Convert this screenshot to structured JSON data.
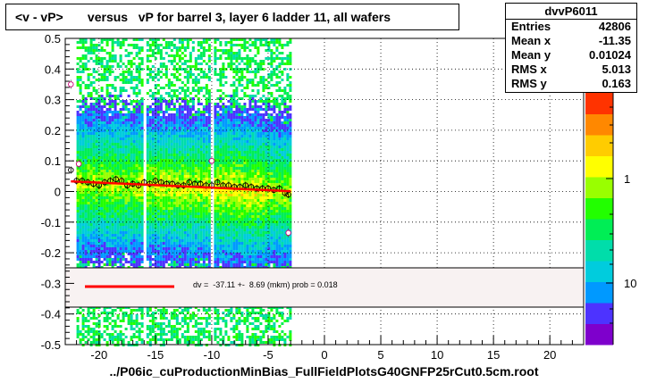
{
  "title": "<v - vP>       versus   vP for barrel 3, layer 6 ladder 11, all wafers",
  "footer": "../P06ic_cuProductionMinBias_FullFieldPlotsG40GNFP25rCut0.5cm.root",
  "stats": {
    "name": "dvvP6011",
    "rows": [
      {
        "label": "Entries",
        "value": "42806"
      },
      {
        "label": "Mean x",
        "value": "-11.35"
      },
      {
        "label": "Mean y",
        "value": "0.01024"
      },
      {
        "label": "RMS x",
        "value": "5.013"
      },
      {
        "label": "RMS y",
        "value": "0.163"
      }
    ]
  },
  "fit_legend": {
    "text": "dv =  -37.11 +-  8.69 (mkm) prob = 0.018",
    "line_color": "#ff0000"
  },
  "chart_data": {
    "type": "heatmap",
    "xlim": [
      -23,
      23
    ],
    "ylim": [
      -0.5,
      0.5
    ],
    "x_ticks": [
      -20,
      -15,
      -10,
      -5,
      0,
      5,
      10,
      15,
      20
    ],
    "y_ticks": [
      -0.5,
      -0.4,
      -0.3,
      -0.2,
      -0.1,
      0,
      0.1,
      0.2,
      0.3,
      0.4,
      0.5
    ],
    "x_tick_labels": [
      "-20",
      "-15",
      "-10",
      "-5",
      "0",
      "5",
      "10",
      "15",
      "20"
    ],
    "y_tick_labels": [
      "-0.5",
      "-0.4",
      "-0.3",
      "-0.2",
      "-0.1",
      "0",
      "0.1",
      "0.2",
      "0.3",
      "0.4",
      "0.5"
    ],
    "grid": true,
    "occupied_x_bands": [
      [
        -22,
        -16.2
      ],
      [
        -15.8,
        -10.2
      ],
      [
        -9.8,
        -3
      ]
    ],
    "colorbar": {
      "scale": "log",
      "labels": [
        "1",
        "10"
      ],
      "colors": [
        "#7e00cc",
        "#4d33ff",
        "#0099ff",
        "#00ccdd",
        "#00ddaa",
        "#00ee55",
        "#22ff00",
        "#99ff00",
        "#ffff00",
        "#ffcc00",
        "#ff8800",
        "#ff3300"
      ]
    },
    "profile_points": {
      "x": [
        -22.5,
        -22,
        -21.5,
        -21,
        -20.5,
        -20,
        -19.5,
        -19,
        -18.5,
        -18,
        -17.5,
        -17,
        -16.5,
        -16,
        -15.5,
        -15,
        -14.5,
        -14,
        -13.5,
        -13,
        -12.5,
        -12,
        -11.5,
        -11,
        -10.5,
        -10,
        -9.5,
        -9,
        -8.5,
        -8,
        -7.5,
        -7,
        -6.5,
        -6,
        -5.5,
        -5,
        -4.5,
        -4,
        -3.5,
        -3.2
      ],
      "y": [
        0.07,
        0.035,
        0.035,
        0.03,
        0.025,
        0.02,
        0.03,
        0.035,
        0.04,
        0.035,
        0.02,
        0.025,
        0.02,
        0.03,
        0.025,
        0.035,
        0.03,
        0.025,
        0.025,
        0.02,
        0.02,
        0.03,
        0.025,
        0.025,
        0.02,
        0.02,
        0.03,
        0.02,
        0.02,
        0.015,
        0.015,
        0.02,
        0.015,
        0.01,
        0.01,
        0.01,
        0.005,
        0.01,
        -0.005,
        -0.01
      ]
    },
    "outlier_points": {
      "x": [
        -22.5,
        -21.8,
        -10,
        -3.2
      ],
      "y": [
        0.35,
        0.09,
        0.1,
        -0.135
      ]
    },
    "fit_line": {
      "x": [
        -22.5,
        -3
      ],
      "y": [
        0.033,
        0.001
      ]
    }
  }
}
